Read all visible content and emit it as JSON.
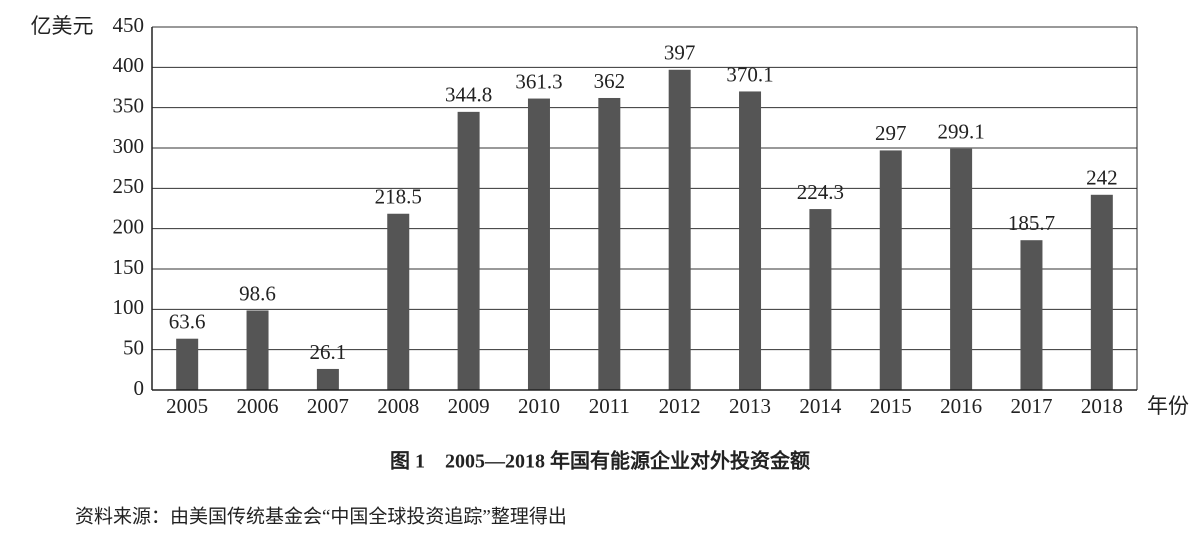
{
  "chart_data": {
    "type": "bar",
    "title": "图 1　2005—2018 年国有能源企业对外投资金额",
    "source": "资料来源：由美国传统基金会“中国全球投资追踪”整理得出",
    "y_label": "亿美元",
    "x_label": "年份",
    "categories": [
      "2005",
      "2006",
      "2007",
      "2008",
      "2009",
      "2010",
      "2011",
      "2012",
      "2013",
      "2014",
      "2015",
      "2016",
      "2017",
      "2018"
    ],
    "values": [
      63.6,
      98.6,
      26.1,
      218.5,
      344.8,
      361.3,
      362,
      397,
      370.1,
      224.3,
      297,
      299.1,
      185.7,
      242
    ],
    "color": "#555555",
    "ylim": [
      0,
      450
    ],
    "yticks": [
      0,
      50,
      100,
      150,
      200,
      250,
      300,
      350,
      400,
      450
    ],
    "grid": true
  }
}
